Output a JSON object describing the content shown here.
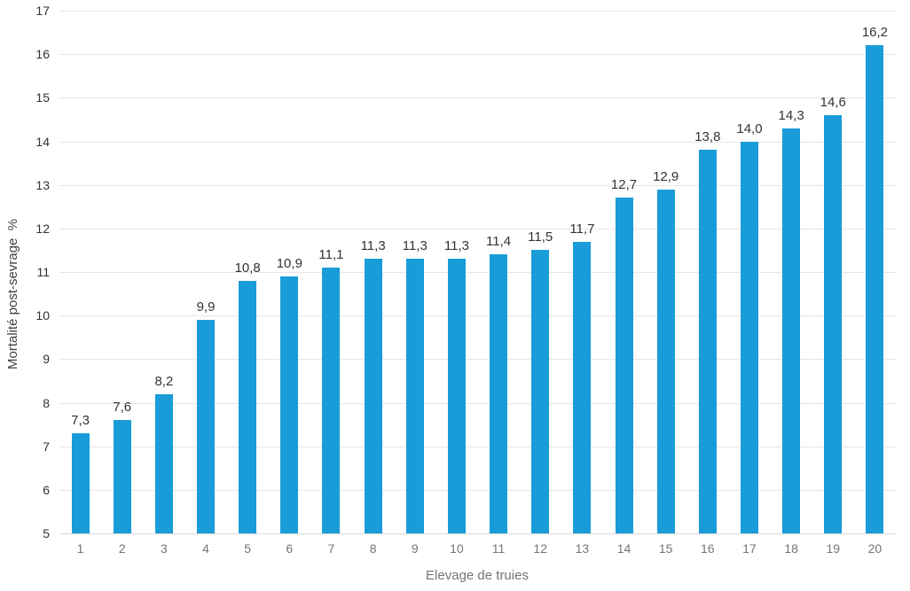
{
  "chart_data": {
    "type": "bar",
    "title": "",
    "xlabel": "Elevage de truies",
    "ylabel": "Mortalité post-sevrage  %",
    "categories": [
      "1",
      "2",
      "3",
      "4",
      "5",
      "6",
      "7",
      "8",
      "9",
      "10",
      "11",
      "12",
      "13",
      "14",
      "15",
      "16",
      "17",
      "18",
      "19",
      "20"
    ],
    "values": [
      7.3,
      7.6,
      8.2,
      9.9,
      10.8,
      10.9,
      11.1,
      11.3,
      11.3,
      11.3,
      11.4,
      11.5,
      11.7,
      12.7,
      12.9,
      13.8,
      14.0,
      14.3,
      14.6,
      16.2
    ],
    "value_labels": [
      "7,3",
      "7,6",
      "8,2",
      "9,9",
      "10,8",
      "10,9",
      "11,1",
      "11,3",
      "11,3",
      "11,3",
      "11,4",
      "11,5",
      "11,7",
      "12,7",
      "12,9",
      "13,8",
      "14,0",
      "14,3",
      "14,6",
      "16,2"
    ],
    "ylim": [
      5,
      17
    ],
    "yticks": [
      5,
      6,
      7,
      8,
      9,
      10,
      11,
      12,
      13,
      14,
      15,
      16,
      17
    ],
    "grid": true,
    "legend": false,
    "colors": {
      "bar": "#199CD8",
      "gridline": "#E6E6E6",
      "axis_line": "#D9D9D9",
      "y_tick_text": "#333333",
      "x_tick_text": "#757575",
      "value_label_text": "#333333",
      "xlabel_text": "#757575",
      "ylabel_text": "#404040"
    }
  }
}
